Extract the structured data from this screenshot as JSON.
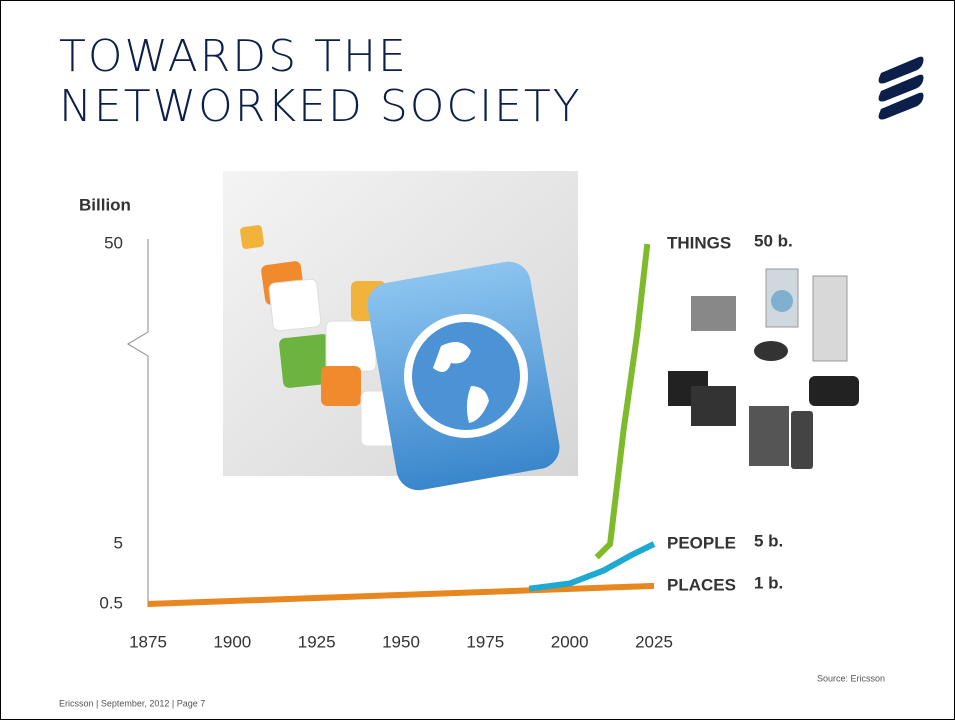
{
  "header": {
    "title_lines": [
      "TOWARDS THE",
      "NETWORKED SOCIETY"
    ]
  },
  "chart_data": {
    "type": "line",
    "y_label": "Billion",
    "xlim": [
      1875,
      2025
    ],
    "xticks": [
      1875,
      1900,
      1925,
      1950,
      1975,
      2000,
      2025
    ],
    "yticks": [
      0.5,
      5,
      50
    ],
    "y_axis_break": true,
    "series": [
      {
        "name": "PLACES",
        "total_label": "1 b.",
        "color": "#e8861f",
        "x": [
          1875,
          2025
        ],
        "values": [
          0.5,
          1
        ]
      },
      {
        "name": "PEOPLE",
        "total_label": "5 b.",
        "color": "#1ea9d3",
        "x": [
          1988,
          2000,
          2010,
          2018,
          2025
        ],
        "values": [
          0.9,
          1.1,
          1.8,
          3.2,
          5
        ]
      },
      {
        "name": "THINGS",
        "total_label": "50 b.",
        "color": "#7dbb2b",
        "x": [
          2008,
          2012,
          2016,
          2020,
          2023
        ],
        "values": [
          3,
          5,
          12,
          25,
          50
        ]
      }
    ]
  },
  "footer": {
    "left": "Ericsson | September, 2012 | Page 7",
    "source": "Source: Ericsson"
  }
}
